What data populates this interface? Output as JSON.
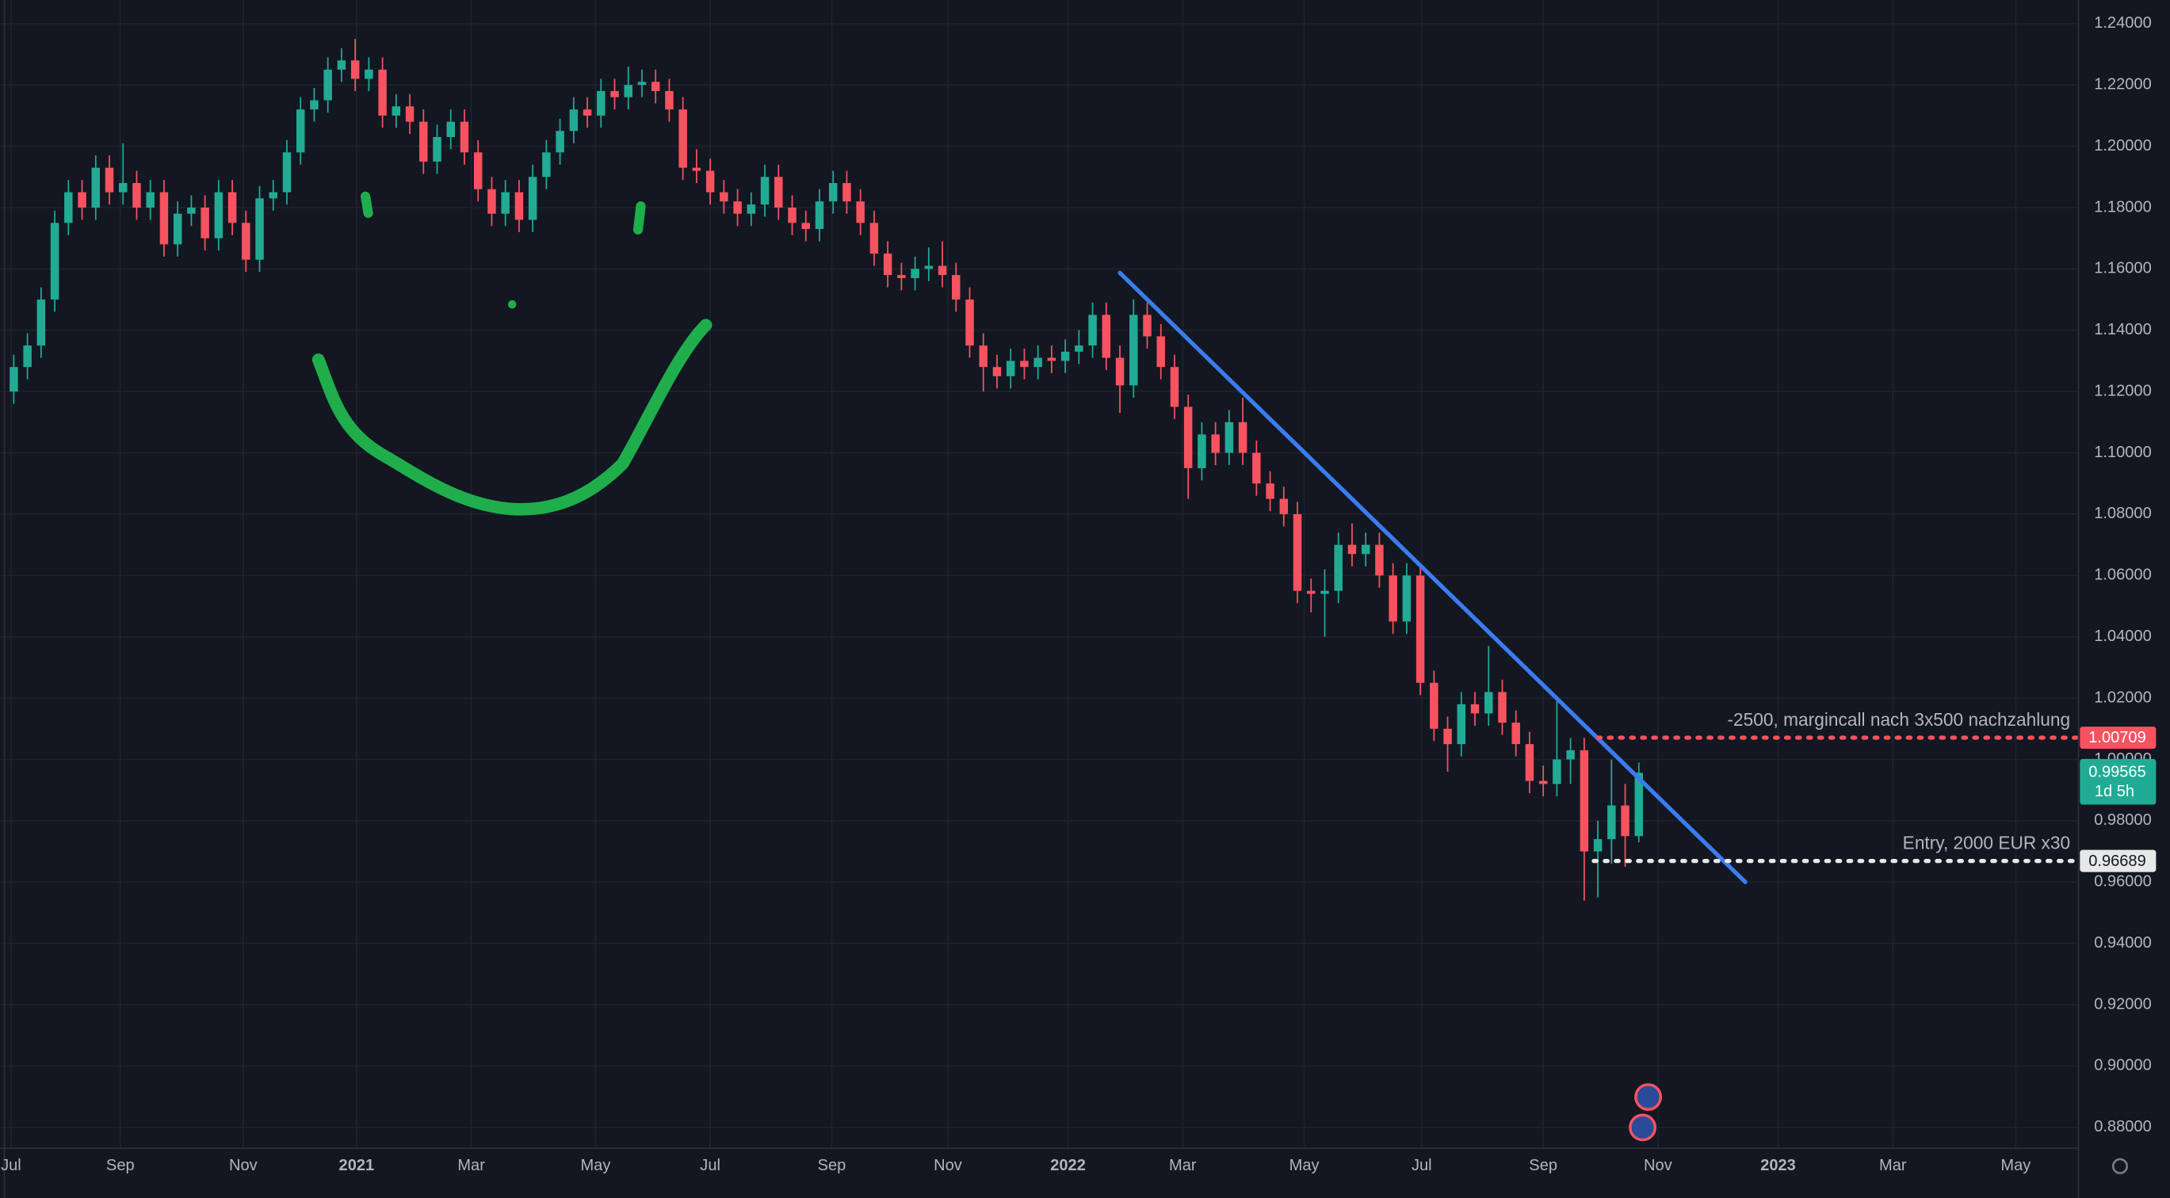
{
  "chart_data": {
    "type": "candlestick",
    "up_color": "#22ab94",
    "down_color": "#f7525f",
    "grid": true,
    "xlim": [
      -1,
      151.2
    ],
    "xticks": [
      {
        "value": -0.2,
        "label": "Jul"
      },
      {
        "value": 7.8,
        "label": "Sep"
      },
      {
        "value": 16.8,
        "label": "Nov"
      },
      {
        "value": 25.1,
        "label": "2021"
      },
      {
        "value": 33.5,
        "label": "Mar"
      },
      {
        "value": 42.6,
        "label": "May"
      },
      {
        "value": 51.0,
        "label": "Jul"
      },
      {
        "value": 59.9,
        "label": "Sep"
      },
      {
        "value": 68.4,
        "label": "Nov"
      },
      {
        "value": 77.2,
        "label": "2022"
      },
      {
        "value": 85.6,
        "label": "Mar"
      },
      {
        "value": 94.5,
        "label": "May"
      },
      {
        "value": 103.1,
        "label": "Jul"
      },
      {
        "value": 112.0,
        "label": "Sep"
      },
      {
        "value": 120.4,
        "label": "Nov"
      },
      {
        "value": 129.2,
        "label": "2023"
      },
      {
        "value": 137.6,
        "label": "Mar"
      },
      {
        "value": 146.6,
        "label": "May"
      }
    ],
    "ylim": [
      0.8732,
      1.2477
    ],
    "yticks": [
      {
        "value": 0.88,
        "label": "0.88000"
      },
      {
        "value": 0.9,
        "label": "0.90000"
      },
      {
        "value": 0.92,
        "label": "0.92000"
      },
      {
        "value": 0.94,
        "label": "0.94000"
      },
      {
        "value": 0.96,
        "label": "0.96000"
      },
      {
        "value": 0.98,
        "label": "0.98000"
      },
      {
        "value": 1.0,
        "label": "1.00000"
      },
      {
        "value": 1.02,
        "label": "1.02000"
      },
      {
        "value": 1.04,
        "label": "1.04000"
      },
      {
        "value": 1.06,
        "label": "1.06000"
      },
      {
        "value": 1.08,
        "label": "1.08000"
      },
      {
        "value": 1.1,
        "label": "1.10000"
      },
      {
        "value": 1.12,
        "label": "1.12000"
      },
      {
        "value": 1.14,
        "label": "1.14000"
      },
      {
        "value": 1.16,
        "label": "1.16000"
      },
      {
        "value": 1.18,
        "label": "1.18000"
      },
      {
        "value": 1.2,
        "label": "1.20000"
      },
      {
        "value": 1.22,
        "label": "1.22000"
      },
      {
        "value": 1.24,
        "label": "1.24000"
      }
    ],
    "ohlc": [
      [
        1.12,
        1.132,
        1.116,
        1.128
      ],
      [
        1.128,
        1.139,
        1.124,
        1.135
      ],
      [
        1.135,
        1.154,
        1.131,
        1.15
      ],
      [
        1.15,
        1.179,
        1.146,
        1.175
      ],
      [
        1.175,
        1.189,
        1.171,
        1.185
      ],
      [
        1.185,
        1.189,
        1.176,
        1.18
      ],
      [
        1.18,
        1.197,
        1.176,
        1.193
      ],
      [
        1.193,
        1.197,
        1.181,
        1.185
      ],
      [
        1.185,
        1.201,
        1.181,
        1.188
      ],
      [
        1.188,
        1.192,
        1.176,
        1.18
      ],
      [
        1.18,
        1.189,
        1.176,
        1.185
      ],
      [
        1.185,
        1.189,
        1.164,
        1.168
      ],
      [
        1.168,
        1.182,
        1.164,
        1.178
      ],
      [
        1.178,
        1.184,
        1.174,
        1.18
      ],
      [
        1.18,
        1.184,
        1.166,
        1.17
      ],
      [
        1.17,
        1.189,
        1.166,
        1.185
      ],
      [
        1.185,
        1.189,
        1.171,
        1.175
      ],
      [
        1.175,
        1.179,
        1.159,
        1.163
      ],
      [
        1.163,
        1.187,
        1.159,
        1.183
      ],
      [
        1.183,
        1.189,
        1.179,
        1.185
      ],
      [
        1.185,
        1.202,
        1.181,
        1.198
      ],
      [
        1.198,
        1.216,
        1.194,
        1.212
      ],
      [
        1.212,
        1.219,
        1.208,
        1.215
      ],
      [
        1.215,
        1.229,
        1.211,
        1.225
      ],
      [
        1.225,
        1.232,
        1.221,
        1.228
      ],
      [
        1.228,
        1.235,
        1.218,
        1.222
      ],
      [
        1.222,
        1.229,
        1.218,
        1.225
      ],
      [
        1.225,
        1.229,
        1.206,
        1.21
      ],
      [
        1.21,
        1.217,
        1.206,
        1.213
      ],
      [
        1.213,
        1.217,
        1.204,
        1.208
      ],
      [
        1.208,
        1.212,
        1.191,
        1.195
      ],
      [
        1.195,
        1.207,
        1.191,
        1.203
      ],
      [
        1.203,
        1.212,
        1.199,
        1.208
      ],
      [
        1.208,
        1.212,
        1.194,
        1.198
      ],
      [
        1.198,
        1.202,
        1.182,
        1.186
      ],
      [
        1.186,
        1.19,
        1.174,
        1.178
      ],
      [
        1.178,
        1.189,
        1.174,
        1.185
      ],
      [
        1.185,
        1.189,
        1.172,
        1.176
      ],
      [
        1.176,
        1.194,
        1.172,
        1.19
      ],
      [
        1.19,
        1.202,
        1.186,
        1.198
      ],
      [
        1.198,
        1.209,
        1.194,
        1.205
      ],
      [
        1.205,
        1.216,
        1.201,
        1.212
      ],
      [
        1.212,
        1.216,
        1.206,
        1.21
      ],
      [
        1.21,
        1.222,
        1.206,
        1.218
      ],
      [
        1.218,
        1.222,
        1.212,
        1.216
      ],
      [
        1.216,
        1.226,
        1.212,
        1.22
      ],
      [
        1.22,
        1.225,
        1.216,
        1.221
      ],
      [
        1.221,
        1.225,
        1.214,
        1.218
      ],
      [
        1.218,
        1.222,
        1.208,
        1.212
      ],
      [
        1.212,
        1.216,
        1.189,
        1.193
      ],
      [
        1.193,
        1.199,
        1.188,
        1.192
      ],
      [
        1.192,
        1.196,
        1.181,
        1.185
      ],
      [
        1.185,
        1.189,
        1.178,
        1.182
      ],
      [
        1.182,
        1.186,
        1.174,
        1.178
      ],
      [
        1.178,
        1.185,
        1.174,
        1.181
      ],
      [
        1.181,
        1.194,
        1.177,
        1.19
      ],
      [
        1.19,
        1.194,
        1.176,
        1.18
      ],
      [
        1.18,
        1.184,
        1.171,
        1.175
      ],
      [
        1.175,
        1.179,
        1.169,
        1.173
      ],
      [
        1.173,
        1.186,
        1.169,
        1.182
      ],
      [
        1.182,
        1.192,
        1.178,
        1.188
      ],
      [
        1.188,
        1.192,
        1.178,
        1.182
      ],
      [
        1.182,
        1.186,
        1.171,
        1.175
      ],
      [
        1.175,
        1.179,
        1.161,
        1.165
      ],
      [
        1.165,
        1.169,
        1.154,
        1.158
      ],
      [
        1.158,
        1.162,
        1.153,
        1.157
      ],
      [
        1.157,
        1.164,
        1.153,
        1.16
      ],
      [
        1.16,
        1.167,
        1.156,
        1.161
      ],
      [
        1.161,
        1.169,
        1.154,
        1.158
      ],
      [
        1.158,
        1.162,
        1.146,
        1.15
      ],
      [
        1.15,
        1.154,
        1.131,
        1.135
      ],
      [
        1.135,
        1.139,
        1.12,
        1.128
      ],
      [
        1.128,
        1.132,
        1.121,
        1.125
      ],
      [
        1.125,
        1.134,
        1.121,
        1.13
      ],
      [
        1.13,
        1.134,
        1.124,
        1.128
      ],
      [
        1.128,
        1.135,
        1.124,
        1.131
      ],
      [
        1.131,
        1.135,
        1.126,
        1.13
      ],
      [
        1.13,
        1.137,
        1.126,
        1.133
      ],
      [
        1.133,
        1.14,
        1.129,
        1.135
      ],
      [
        1.135,
        1.149,
        1.131,
        1.145
      ],
      [
        1.145,
        1.149,
        1.127,
        1.131
      ],
      [
        1.131,
        1.135,
        1.113,
        1.122
      ],
      [
        1.122,
        1.15,
        1.118,
        1.145
      ],
      [
        1.145,
        1.149,
        1.134,
        1.138
      ],
      [
        1.138,
        1.142,
        1.124,
        1.128
      ],
      [
        1.128,
        1.132,
        1.111,
        1.115
      ],
      [
        1.115,
        1.119,
        1.085,
        1.095
      ],
      [
        1.095,
        1.11,
        1.091,
        1.106
      ],
      [
        1.106,
        1.11,
        1.096,
        1.1
      ],
      [
        1.1,
        1.114,
        1.096,
        1.11
      ],
      [
        1.11,
        1.118,
        1.096,
        1.1
      ],
      [
        1.1,
        1.104,
        1.086,
        1.09
      ],
      [
        1.09,
        1.094,
        1.081,
        1.085
      ],
      [
        1.085,
        1.089,
        1.076,
        1.08
      ],
      [
        1.08,
        1.084,
        1.051,
        1.055
      ],
      [
        1.055,
        1.059,
        1.048,
        1.054
      ],
      [
        1.054,
        1.062,
        1.04,
        1.055
      ],
      [
        1.055,
        1.074,
        1.051,
        1.07
      ],
      [
        1.07,
        1.077,
        1.063,
        1.067
      ],
      [
        1.067,
        1.074,
        1.063,
        1.07
      ],
      [
        1.07,
        1.074,
        1.056,
        1.06
      ],
      [
        1.06,
        1.064,
        1.041,
        1.045
      ],
      [
        1.045,
        1.064,
        1.041,
        1.06
      ],
      [
        1.06,
        1.064,
        1.021,
        1.025
      ],
      [
        1.025,
        1.029,
        1.006,
        1.01
      ],
      [
        1.01,
        1.014,
        0.996,
        1.005
      ],
      [
        1.005,
        1.022,
        1.001,
        1.018
      ],
      [
        1.018,
        1.022,
        1.011,
        1.015
      ],
      [
        1.015,
        1.037,
        1.011,
        1.022
      ],
      [
        1.022,
        1.026,
        1.008,
        1.012
      ],
      [
        1.012,
        1.016,
        1.001,
        1.005
      ],
      [
        1.005,
        1.009,
        0.989,
        0.993
      ],
      [
        0.993,
        0.998,
        0.988,
        0.992
      ],
      [
        0.992,
        1.019,
        0.988,
        1.0
      ],
      [
        1.0,
        1.007,
        0.992,
        1.003
      ],
      [
        1.003,
        1.007,
        0.954,
        0.97
      ],
      [
        0.97,
        0.98,
        0.955,
        0.974
      ],
      [
        0.974,
        1.0,
        0.966,
        0.985
      ],
      [
        0.985,
        0.992,
        0.965,
        0.975
      ],
      [
        0.975,
        0.999,
        0.973,
        0.99565
      ]
    ],
    "countdown": "1d 5h",
    "trendline": {
      "color": "#3b7cf0",
      "x": [
        81.0,
        126.8
      ],
      "y": [
        1.1587,
        0.96
      ]
    },
    "price_lines": [
      {
        "value": 1.00709,
        "text": "-2500, margincall nach 3x500 nachzahlung",
        "color": "#f7525f",
        "start": 116
      },
      {
        "value": 0.96689,
        "text": "Entry, 2000 EUR x30",
        "color": "#e8e8e8",
        "start": 115.7
      }
    ]
  }
}
